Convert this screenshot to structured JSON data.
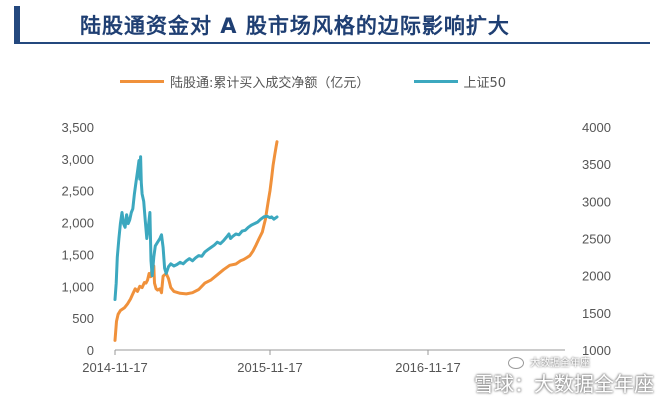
{
  "header": {
    "title": "陆股通资金对 A 股市场风格的边际影响扩大"
  },
  "colors": {
    "accent": "#24487e",
    "series1": "#f0913b",
    "series2": "#3ca8bf"
  },
  "watermark": {
    "main": "雪球：大数据全年座",
    "sub": "大数据全年座"
  },
  "chart_data": {
    "type": "line",
    "x_ticks": [
      "2014-11-17",
      "2015-11-17",
      "2016-11-17"
    ],
    "y_left": {
      "ticks": [
        "0",
        "500",
        "1,000",
        "1,500",
        "2,000",
        "2,500",
        "3,000",
        "3,500"
      ],
      "range": [
        0,
        3500
      ]
    },
    "y_right": {
      "ticks": [
        "1000",
        "1500",
        "2000",
        "2500",
        "3000",
        "3500",
        "4000"
      ],
      "range": [
        1000,
        4000
      ]
    },
    "legend_position": "top",
    "series": [
      {
        "name": "陆股通:累计买入成交净额（亿元）",
        "axis": "left",
        "color": "#f0913b",
        "points": [
          [
            0.0,
            150
          ],
          [
            0.01,
            450
          ],
          [
            0.02,
            560
          ],
          [
            0.035,
            620
          ],
          [
            0.06,
            660
          ],
          [
            0.08,
            720
          ],
          [
            0.1,
            800
          ],
          [
            0.115,
            880
          ],
          [
            0.13,
            960
          ],
          [
            0.145,
            920
          ],
          [
            0.16,
            1000
          ],
          [
            0.175,
            980
          ],
          [
            0.19,
            1060
          ],
          [
            0.2,
            1050
          ],
          [
            0.21,
            1100
          ],
          [
            0.22,
            1200
          ],
          [
            0.23,
            1150
          ],
          [
            0.24,
            1280
          ],
          [
            0.25,
            1320
          ],
          [
            0.255,
            1050
          ],
          [
            0.265,
            960
          ],
          [
            0.275,
            940
          ],
          [
            0.29,
            960
          ],
          [
            0.3,
            900
          ],
          [
            0.31,
            1160
          ],
          [
            0.33,
            1200
          ],
          [
            0.345,
            1120
          ],
          [
            0.36,
            980
          ],
          [
            0.38,
            920
          ],
          [
            0.42,
            890
          ],
          [
            0.46,
            880
          ],
          [
            0.5,
            900
          ],
          [
            0.54,
            950
          ],
          [
            0.58,
            1050
          ],
          [
            0.62,
            1100
          ],
          [
            0.66,
            1180
          ],
          [
            0.7,
            1260
          ],
          [
            0.74,
            1330
          ],
          [
            0.78,
            1350
          ],
          [
            0.81,
            1400
          ],
          [
            0.83,
            1420
          ],
          [
            0.85,
            1450
          ],
          [
            0.87,
            1480
          ],
          [
            0.89,
            1550
          ],
          [
            0.91,
            1650
          ],
          [
            0.93,
            1750
          ],
          [
            0.95,
            1850
          ],
          [
            0.96,
            1950
          ],
          [
            0.97,
            2050
          ],
          [
            0.98,
            2200
          ],
          [
            0.99,
            2350
          ],
          [
            1.0,
            2500
          ],
          [
            1.01,
            2700
          ],
          [
            1.02,
            2900
          ],
          [
            1.03,
            3050
          ],
          [
            1.04,
            3200
          ],
          [
            1.045,
            3270
          ]
        ]
      },
      {
        "name": "上证50",
        "axis": "right",
        "color": "#3ca8bf",
        "points": [
          [
            0.0,
            1680
          ],
          [
            0.008,
            1900
          ],
          [
            0.015,
            2250
          ],
          [
            0.025,
            2500
          ],
          [
            0.035,
            2700
          ],
          [
            0.045,
            2850
          ],
          [
            0.055,
            2700
          ],
          [
            0.065,
            2650
          ],
          [
            0.075,
            2820
          ],
          [
            0.085,
            2700
          ],
          [
            0.095,
            2750
          ],
          [
            0.105,
            2850
          ],
          [
            0.115,
            2900
          ],
          [
            0.125,
            3100
          ],
          [
            0.135,
            3250
          ],
          [
            0.145,
            3400
          ],
          [
            0.155,
            3550
          ],
          [
            0.16,
            3300
          ],
          [
            0.165,
            3600
          ],
          [
            0.17,
            3250
          ],
          [
            0.175,
            3100
          ],
          [
            0.185,
            3000
          ],
          [
            0.195,
            2750
          ],
          [
            0.205,
            2500
          ],
          [
            0.215,
            2650
          ],
          [
            0.225,
            2850
          ],
          [
            0.232,
            2200
          ],
          [
            0.24,
            2000
          ],
          [
            0.25,
            2250
          ],
          [
            0.26,
            2400
          ],
          [
            0.275,
            2450
          ],
          [
            0.29,
            2500
          ],
          [
            0.3,
            2550
          ],
          [
            0.31,
            2380
          ],
          [
            0.32,
            2100
          ],
          [
            0.33,
            2030
          ],
          [
            0.345,
            2120
          ],
          [
            0.36,
            2160
          ],
          [
            0.38,
            2130
          ],
          [
            0.4,
            2150
          ],
          [
            0.42,
            2180
          ],
          [
            0.44,
            2160
          ],
          [
            0.46,
            2200
          ],
          [
            0.48,
            2230
          ],
          [
            0.5,
            2200
          ],
          [
            0.52,
            2240
          ],
          [
            0.54,
            2270
          ],
          [
            0.56,
            2260
          ],
          [
            0.58,
            2320
          ],
          [
            0.6,
            2350
          ],
          [
            0.62,
            2380
          ],
          [
            0.64,
            2410
          ],
          [
            0.66,
            2450
          ],
          [
            0.68,
            2430
          ],
          [
            0.7,
            2470
          ],
          [
            0.72,
            2520
          ],
          [
            0.735,
            2560
          ],
          [
            0.745,
            2500
          ],
          [
            0.76,
            2530
          ],
          [
            0.78,
            2560
          ],
          [
            0.8,
            2550
          ],
          [
            0.82,
            2600
          ],
          [
            0.84,
            2610
          ],
          [
            0.86,
            2650
          ],
          [
            0.88,
            2680
          ],
          [
            0.9,
            2700
          ],
          [
            0.92,
            2720
          ],
          [
            0.94,
            2760
          ],
          [
            0.96,
            2790
          ],
          [
            0.98,
            2800
          ],
          [
            1.0,
            2780
          ],
          [
            1.01,
            2790
          ],
          [
            1.025,
            2760
          ],
          [
            1.045,
            2790
          ]
        ]
      }
    ]
  }
}
